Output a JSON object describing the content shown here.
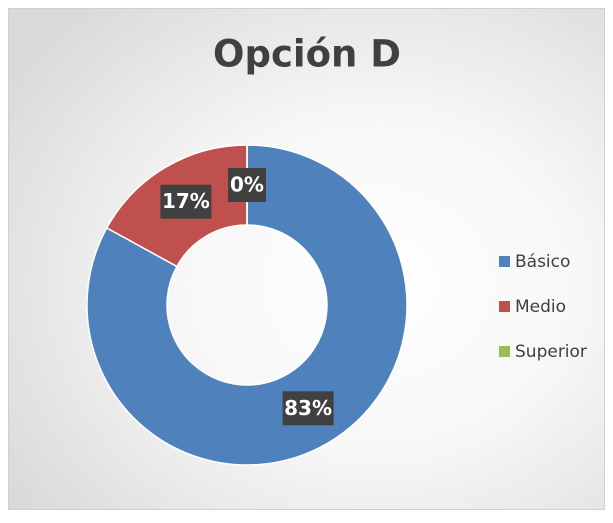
{
  "chart_data": {
    "type": "donut",
    "title": "Opción D",
    "categories": [
      "Básico",
      "Medio",
      "Superior"
    ],
    "values": [
      83,
      17,
      0
    ],
    "value_labels": [
      "83%",
      "17%",
      "0%"
    ],
    "colors": [
      "#4f81bd",
      "#c0504d",
      "#9bbb59"
    ],
    "legend": "right"
  }
}
